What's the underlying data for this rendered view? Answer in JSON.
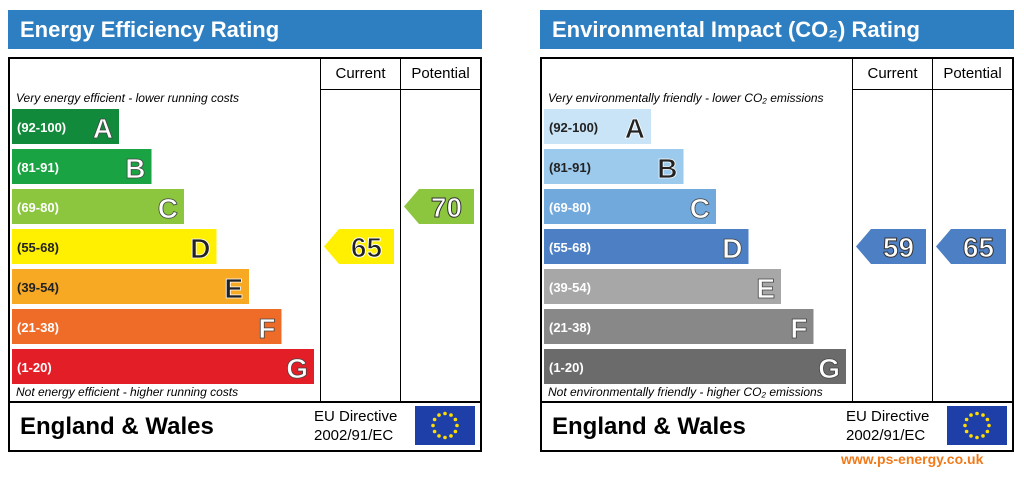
{
  "credit": "www.ps-energy.co.uk",
  "chart_data": [
    {
      "type": "bar",
      "title": "Energy Efficiency Rating",
      "column_headers": [
        "Current",
        "Potential"
      ],
      "top_text": "Very energy efficient - lower running costs",
      "bottom_text": "Not energy efficient - higher running costs",
      "bands": [
        {
          "range": "(92-100)",
          "letter": "A",
          "color": "#128a3b"
        },
        {
          "range": "(81-91)",
          "letter": "B",
          "color": "#1aa342"
        },
        {
          "range": "(69-80)",
          "letter": "C",
          "color": "#8cc63f"
        },
        {
          "range": "(55-68)",
          "letter": "D",
          "color": "#ffef00"
        },
        {
          "range": "(39-54)",
          "letter": "E",
          "color": "#f7a924"
        },
        {
          "range": "(21-38)",
          "letter": "F",
          "color": "#ef6c28"
        },
        {
          "range": "(1-20)",
          "letter": "G",
          "color": "#e41e26"
        }
      ],
      "current": {
        "value": 65,
        "band": "D",
        "color": "#ffef00"
      },
      "potential": {
        "value": 70,
        "band": "C",
        "color": "#8cc63f"
      },
      "region": "England & Wales",
      "directive_line1": "EU Directive",
      "directive_line2": "2002/91/EC"
    },
    {
      "type": "bar",
      "title": "Environmental Impact (CO₂) Rating",
      "column_headers": [
        "Current",
        "Potential"
      ],
      "top_text": "Very environmentally friendly - lower CO₂ emissions",
      "bottom_text": "Not environmentally friendly - higher CO₂ emissions",
      "bands": [
        {
          "range": "(92-100)",
          "letter": "A",
          "color": "#c9e4f7"
        },
        {
          "range": "(81-91)",
          "letter": "B",
          "color": "#9ccaed"
        },
        {
          "range": "(69-80)",
          "letter": "C",
          "color": "#71a9dc"
        },
        {
          "range": "(55-68)",
          "letter": "D",
          "color": "#4d7fc4"
        },
        {
          "range": "(39-54)",
          "letter": "E",
          "color": "#a7a7a7"
        },
        {
          "range": "(21-38)",
          "letter": "F",
          "color": "#888888"
        },
        {
          "range": "(1-20)",
          "letter": "G",
          "color": "#6b6b6b"
        }
      ],
      "current": {
        "value": 59,
        "band": "D",
        "color": "#4d7fc4"
      },
      "potential": {
        "value": 65,
        "band": "D",
        "color": "#4d7fc4"
      },
      "region": "England & Wales",
      "directive_line1": "EU Directive",
      "directive_line2": "2002/91/EC"
    }
  ]
}
